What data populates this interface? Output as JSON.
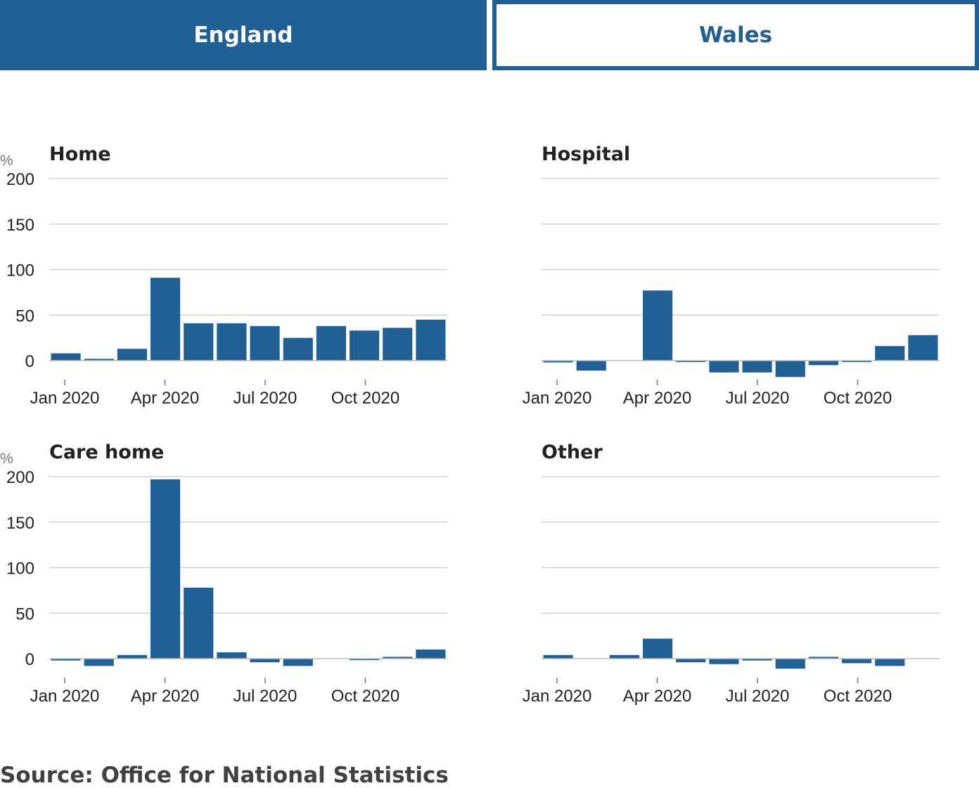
{
  "tabs": [
    {
      "label": "England",
      "active": true
    },
    {
      "label": "Wales",
      "active": false
    }
  ],
  "colors": {
    "accent": "#206095",
    "grid": "#d0d0d0",
    "text": "#222222",
    "axis": "#767676",
    "source": "#414042"
  },
  "unit_label": "%",
  "source": "Source: Office for National Statistics",
  "chart_data": [
    {
      "type": "bar",
      "title": "Home",
      "categories": [
        "Jan 2020",
        "Feb 2020",
        "Mar 2020",
        "Apr 2020",
        "May 2020",
        "Jun 2020",
        "Jul 2020",
        "Aug 2020",
        "Sep 2020",
        "Oct 2020",
        "Nov 2020",
        "Dec 2020"
      ],
      "values": [
        8,
        2,
        13,
        91,
        41,
        41,
        38,
        25,
        38,
        33,
        36,
        45
      ],
      "xticks": [
        "Jan 2020",
        "Apr 2020",
        "Jul 2020",
        "Oct 2020"
      ],
      "yticks": [
        0,
        50,
        100,
        150,
        200
      ],
      "ylim": [
        -20,
        200
      ],
      "ylabel": "%",
      "grid": true
    },
    {
      "type": "bar",
      "title": "Hospital",
      "categories": [
        "Jan 2020",
        "Feb 2020",
        "Mar 2020",
        "Apr 2020",
        "May 2020",
        "Jun 2020",
        "Jul 2020",
        "Aug 2020",
        "Sep 2020",
        "Oct 2020",
        "Nov 2020",
        "Dec 2020"
      ],
      "values": [
        -2,
        -11,
        0,
        77,
        -1,
        -13,
        -13,
        -18,
        -5,
        -1,
        16,
        28
      ],
      "xticks": [
        "Jan 2020",
        "Apr 2020",
        "Jul 2020",
        "Oct 2020"
      ],
      "yticks": [
        0,
        50,
        100,
        150,
        200
      ],
      "ylim": [
        -20,
        200
      ],
      "ylabel": "",
      "grid": true
    },
    {
      "type": "bar",
      "title": "Care home",
      "categories": [
        "Jan 2020",
        "Feb 2020",
        "Mar 2020",
        "Apr 2020",
        "May 2020",
        "Jun 2020",
        "Jul 2020",
        "Aug 2020",
        "Sep 2020",
        "Oct 2020",
        "Nov 2020",
        "Dec 2020"
      ],
      "values": [
        -2,
        -8,
        4,
        197,
        78,
        7,
        -4,
        -8,
        0,
        -1,
        2,
        10
      ],
      "xticks": [
        "Jan 2020",
        "Apr 2020",
        "Jul 2020",
        "Oct 2020"
      ],
      "yticks": [
        0,
        50,
        100,
        150,
        200
      ],
      "ylim": [
        -20,
        200
      ],
      "ylabel": "%",
      "grid": true
    },
    {
      "type": "bar",
      "title": "Other",
      "categories": [
        "Jan 2020",
        "Feb 2020",
        "Mar 2020",
        "Apr 2020",
        "May 2020",
        "Jun 2020",
        "Jul 2020",
        "Aug 2020",
        "Sep 2020",
        "Oct 2020",
        "Nov 2020",
        "Dec 2020"
      ],
      "values": [
        4,
        0,
        4,
        22,
        -4,
        -6,
        -2,
        -11,
        2,
        -5,
        -8,
        0
      ],
      "xticks": [
        "Jan 2020",
        "Apr 2020",
        "Jul 2020",
        "Oct 2020"
      ],
      "yticks": [
        0,
        50,
        100,
        150,
        200
      ],
      "ylim": [
        -20,
        200
      ],
      "ylabel": "",
      "grid": true
    }
  ]
}
